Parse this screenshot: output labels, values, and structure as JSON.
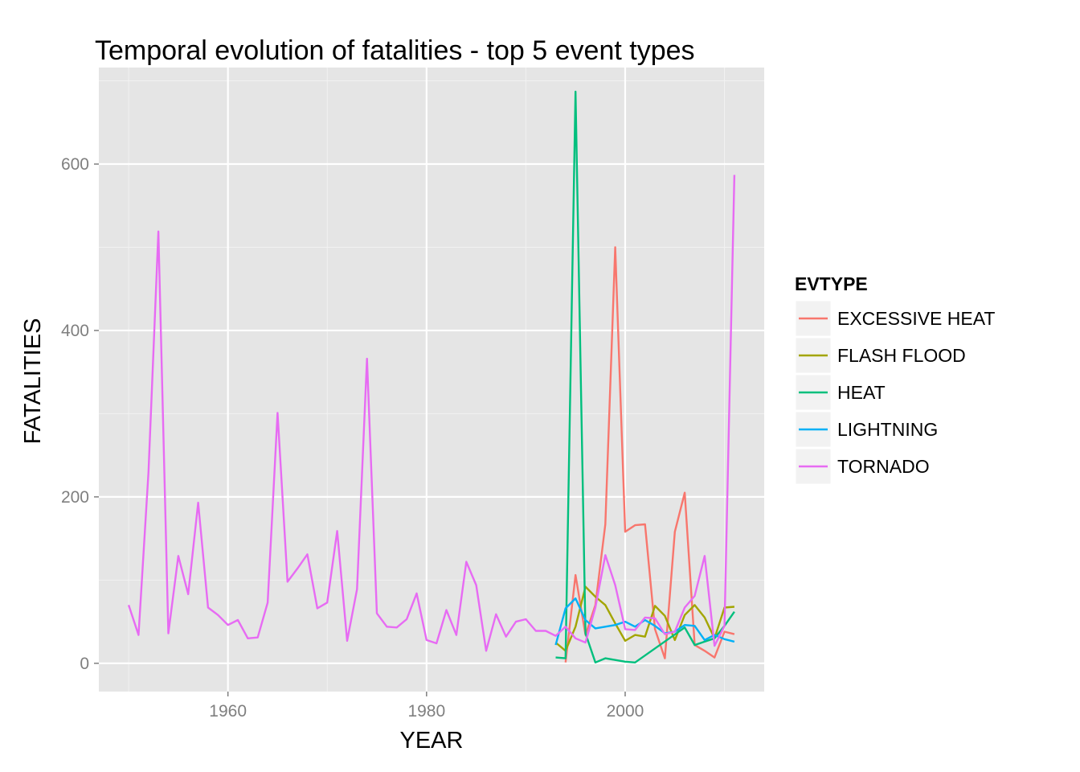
{
  "chart_data": {
    "type": "line",
    "title": "Temporal evolution of fatalities - top 5 event types",
    "xlabel": "YEAR",
    "ylabel": "FATALITIES",
    "xlim": [
      1947,
      2014
    ],
    "ylim": [
      -34,
      716
    ],
    "x_ticks": [
      1960,
      1980,
      2000
    ],
    "y_ticks": [
      0,
      200,
      400,
      600
    ],
    "x_tick_labels": [
      "1960",
      "1980",
      "2000"
    ],
    "y_tick_labels": [
      "0",
      "200",
      "400",
      "600"
    ],
    "grid": true,
    "legend": {
      "title": "EVTYPE",
      "position": "right"
    },
    "series": [
      {
        "name": "EXCESSIVE HEAT",
        "color": "#F8766D",
        "x": [
          1994,
          1995,
          1996,
          1997,
          1998,
          1999,
          2000,
          2001,
          2002,
          2003,
          2004,
          2005,
          2006,
          2007,
          2008,
          2009,
          2010,
          2011
        ],
        "y": [
          1,
          106,
          34,
          70,
          167,
          500,
          158,
          166,
          167,
          41,
          6,
          158,
          205,
          22,
          15,
          7,
          38,
          35
        ]
      },
      {
        "name": "FLASH FLOOD",
        "color": "#A3A500",
        "x": [
          1993,
          1994,
          1995,
          1996,
          1997,
          1998,
          1999,
          2000,
          2001,
          2002,
          2003,
          2004,
          2005,
          2006,
          2007,
          2008,
          2009,
          2010,
          2011
        ],
        "y": [
          25,
          15,
          44,
          92,
          80,
          70,
          48,
          27,
          34,
          32,
          69,
          57,
          28,
          58,
          70,
          55,
          30,
          67,
          68
        ]
      },
      {
        "name": "HEAT",
        "color": "#00BF7D",
        "x": [
          1993,
          1994,
          1995,
          1996,
          1997,
          1998,
          1999,
          2000,
          2001,
          2006,
          2007,
          2008,
          2009,
          2010,
          2011
        ],
        "y": [
          7,
          6,
          687,
          36,
          1,
          6,
          4,
          2,
          1,
          43,
          22,
          26,
          30,
          45,
          62
        ]
      },
      {
        "name": "LIGHTNING",
        "color": "#00B0F6",
        "x": [
          1993,
          1994,
          1995,
          1996,
          1997,
          1998,
          1999,
          2000,
          2001,
          2002,
          2003,
          2004,
          2005,
          2006,
          2007,
          2008,
          2009,
          2010,
          2011
        ],
        "y": [
          22,
          66,
          78,
          52,
          42,
          44,
          46,
          50,
          44,
          52,
          45,
          36,
          38,
          46,
          45,
          28,
          34,
          29,
          26
        ]
      },
      {
        "name": "TORNADO",
        "color": "#E76BF3",
        "x": [
          1950,
          1951,
          1952,
          1953,
          1954,
          1955,
          1956,
          1957,
          1958,
          1959,
          1960,
          1961,
          1962,
          1963,
          1964,
          1965,
          1966,
          1967,
          1968,
          1969,
          1970,
          1971,
          1972,
          1973,
          1974,
          1975,
          1976,
          1977,
          1978,
          1979,
          1980,
          1981,
          1982,
          1983,
          1984,
          1985,
          1986,
          1987,
          1988,
          1989,
          1990,
          1991,
          1992,
          1993,
          1994,
          1995,
          1996,
          1997,
          1998,
          1999,
          2000,
          2001,
          2002,
          2003,
          2004,
          2005,
          2006,
          2007,
          2008,
          2009,
          2010,
          2011
        ],
        "y": [
          70,
          34,
          230,
          519,
          36,
          129,
          83,
          193,
          67,
          58,
          46,
          52,
          30,
          31,
          73,
          301,
          98,
          114,
          131,
          66,
          73,
          159,
          27,
          89,
          366,
          60,
          44,
          43,
          53,
          84,
          28,
          24,
          64,
          34,
          122,
          94,
          15,
          59,
          32,
          50,
          53,
          39,
          39,
          33,
          44,
          30,
          25,
          67,
          130,
          94,
          41,
          40,
          55,
          54,
          35,
          38,
          67,
          81,
          129,
          21,
          45,
          587
        ]
      }
    ]
  }
}
